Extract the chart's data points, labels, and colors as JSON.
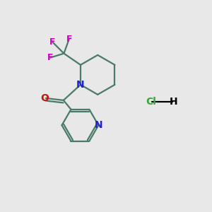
{
  "bg_color": "#e8e8e8",
  "bond_color": "#4a7a6a",
  "N_color": "#2222cc",
  "O_color": "#cc1111",
  "F_color": "#cc00bb",
  "Cl_color": "#33aa33",
  "line_width": 1.6,
  "fig_size": [
    3.0,
    3.0
  ],
  "dpi": 100,
  "xlim": [
    0,
    10
  ],
  "ylim": [
    0,
    10
  ]
}
